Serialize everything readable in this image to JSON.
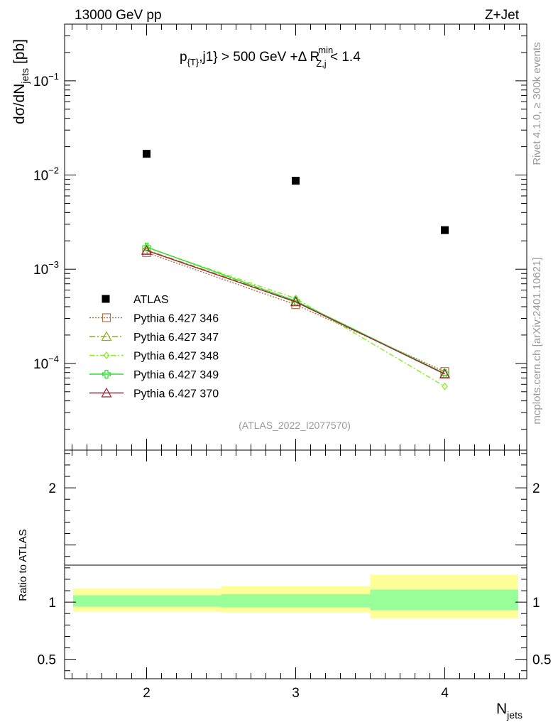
{
  "header": {
    "left": "13000 GeV pp",
    "right": "Z+Jet"
  },
  "side_labels": {
    "rivet": "Rivet 4.1.0, ≥ 300k events",
    "mcplots": "mcplots.cern.ch [arXiv:2401.10621]"
  },
  "chart_data": {
    "type": "scatter",
    "title_parts": {
      "pt": "p",
      "pt_sub": "{T}",
      "j1": ",j1} > 500 GeV +Δ R",
      "r_sup": "min",
      "r_sub": "Z,j",
      "cut": " < 1.4"
    },
    "analysis_id": "(ATLAS_2022_I2077570)",
    "ylabel_parts": {
      "main": "dσ/dN",
      "sub": "jets",
      "unit": " [pb]"
    },
    "xlabel_parts": {
      "main": "N",
      "sub": "jets"
    },
    "ratio_ylabel": "Ratio to ATLAS",
    "xlim": [
      1.45,
      4.55
    ],
    "ylim_log": [
      1.2e-05,
      0.4
    ],
    "ratio_ylim": [
      0.33,
      2.33
    ],
    "x": [
      2,
      3,
      4
    ],
    "x_ticks": [
      "2",
      "3",
      "4"
    ],
    "y_ticks": [
      {
        "value": 0.1,
        "base": "10",
        "exp": "−1"
      },
      {
        "value": 0.01,
        "base": "10",
        "exp": "−2"
      },
      {
        "value": 0.001,
        "base": "10",
        "exp": "−3"
      },
      {
        "value": 0.0001,
        "base": "10",
        "exp": "−4"
      }
    ],
    "ratio_ticks": [
      {
        "value": 2,
        "label": "2"
      },
      {
        "value": 1,
        "label": "1"
      },
      {
        "value": 0.5,
        "label": "0.5"
      }
    ],
    "data": {
      "name": "ATLAS",
      "values": [
        0.0168,
        0.0087,
        0.0026
      ],
      "bins": [
        [
          1.5,
          2.5
        ],
        [
          2.5,
          3.5
        ],
        [
          3.5,
          4.5
        ]
      ],
      "stat_band": [
        [
          0.96,
          1.06
        ],
        [
          0.955,
          1.07
        ],
        [
          0.93,
          1.11
        ]
      ],
      "total_band": [
        [
          0.92,
          1.12
        ],
        [
          0.91,
          1.14
        ],
        [
          0.86,
          1.24
        ]
      ]
    },
    "series": [
      {
        "name": "Pythia 6.427 346",
        "color": "#b07040",
        "marker": "square",
        "dash": "2,2",
        "values": [
          0.0015,
          0.00042,
          8.2e-05
        ]
      },
      {
        "name": "Pythia 6.427 347",
        "color": "#99aa22",
        "marker": "triangle",
        "dash": "8,3,2,3",
        "values": [
          0.0016,
          0.00046,
          7.8e-05
        ]
      },
      {
        "name": "Pythia 6.427 348",
        "color": "#88ee22",
        "marker": "diamond",
        "dash": "7,3,2,3",
        "values": [
          0.0017,
          0.00049,
          5.7e-05
        ]
      },
      {
        "name": "Pythia 6.427 349",
        "color": "#33dd33",
        "marker": "cross",
        "dash": "",
        "values": [
          0.00172,
          0.00046,
          7.8e-05
        ]
      },
      {
        "name": "Pythia 6.427 370",
        "color": "#992233",
        "marker": "triangle",
        "dash": "",
        "values": [
          0.00158,
          0.00045,
          7.7e-05
        ]
      }
    ],
    "colors": {
      "stat_band": "#99ff99",
      "total_band": "#ffff99",
      "frame": "#000000",
      "watermark": "#999999"
    }
  }
}
